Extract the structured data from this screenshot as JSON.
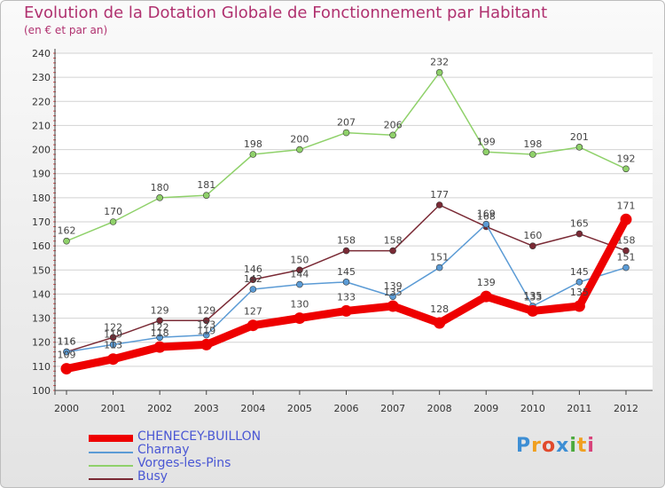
{
  "header": {
    "title": "Evolution de la Dotation Globale de Fonctionnement par Habitant",
    "subtitle": "(en € et par an)"
  },
  "brand": {
    "logo_text": "Proxiti",
    "colors": [
      "#3d8ed4",
      "#f0a020",
      "#e14a2c",
      "#3d8ed4",
      "#4caa3c",
      "#f0a020",
      "#d8427a"
    ]
  },
  "chart_data": {
    "type": "line",
    "title": "Evolution de la Dotation Globale de Fonctionnement par Habitant",
    "subtitle": "(en € et par an)",
    "xlabel": "",
    "ylabel": "",
    "ylim": [
      100,
      240
    ],
    "yticks": [
      100,
      110,
      120,
      130,
      140,
      150,
      160,
      170,
      180,
      190,
      200,
      210,
      220,
      230,
      240
    ],
    "grid": "horizontal",
    "legend_position": "bottom-left",
    "x": [
      "2000",
      "2001",
      "2002",
      "2003",
      "2004",
      "2005",
      "2006",
      "2007",
      "2008",
      "2009",
      "2010",
      "2011",
      "2012"
    ],
    "series": [
      {
        "name": "Vorges-les-Pins",
        "color": "#8fd16a",
        "style": "thin",
        "values": [
          162,
          170,
          180,
          181,
          198,
          200,
          207,
          206,
          232,
          199,
          198,
          201,
          192
        ]
      },
      {
        "name": "Busy",
        "color": "#7a2a35",
        "style": "thin",
        "values": [
          116,
          122,
          129,
          129,
          146,
          150,
          158,
          158,
          177,
          168,
          160,
          165,
          158
        ]
      },
      {
        "name": "Charnay",
        "color": "#5b9bd5",
        "style": "thin",
        "values": [
          116,
          119,
          122,
          123,
          142,
          144,
          145,
          139,
          151,
          169,
          135,
          145,
          151
        ]
      },
      {
        "name": "CHENECEY-BUILLON",
        "color": "#ee0000",
        "style": "thick",
        "values": [
          109,
          113,
          118,
          119,
          127,
          130,
          133,
          135,
          128,
          139,
          133,
          135,
          171
        ]
      }
    ],
    "legend_order": [
      "CHENECEY-BUILLON",
      "Charnay",
      "Vorges-les-Pins",
      "Busy"
    ]
  }
}
